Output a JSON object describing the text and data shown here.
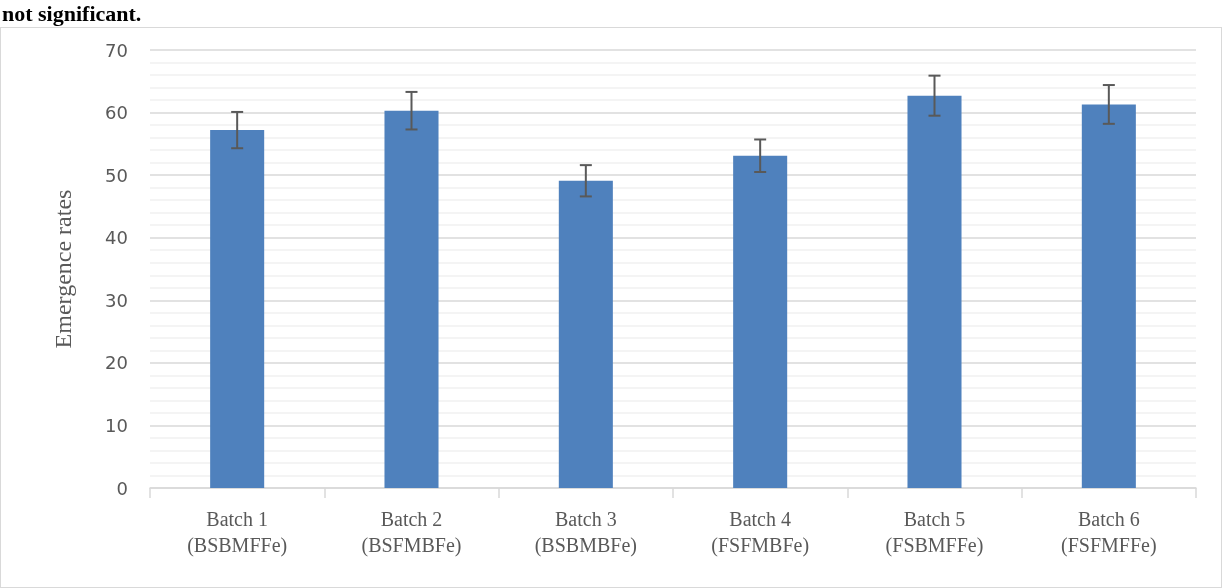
{
  "chart_data": {
    "type": "bar",
    "ylabel": "Emergence rates",
    "annotations": [
      "not significant."
    ],
    "categories": [
      "Batch 1\n(BSBMFFe)",
      "Batch 2\n(BSFMBFe)",
      "Batch 3\n(BSBMBFe)",
      "Batch 4\n(FSFMBFe)",
      "Batch 5\n(FSBMFFe)",
      "Batch 6\n(FSFMFFe)"
    ],
    "values": [
      57.2,
      60.3,
      49.1,
      53.1,
      62.7,
      61.3
    ],
    "errors": [
      2.9,
      3.0,
      2.5,
      2.6,
      3.2,
      3.1
    ],
    "color": "#4f81bd",
    "ylim": [
      0,
      70
    ],
    "yticks": [
      0,
      10,
      20,
      30,
      40,
      50,
      60,
      70
    ],
    "grid": "y"
  }
}
